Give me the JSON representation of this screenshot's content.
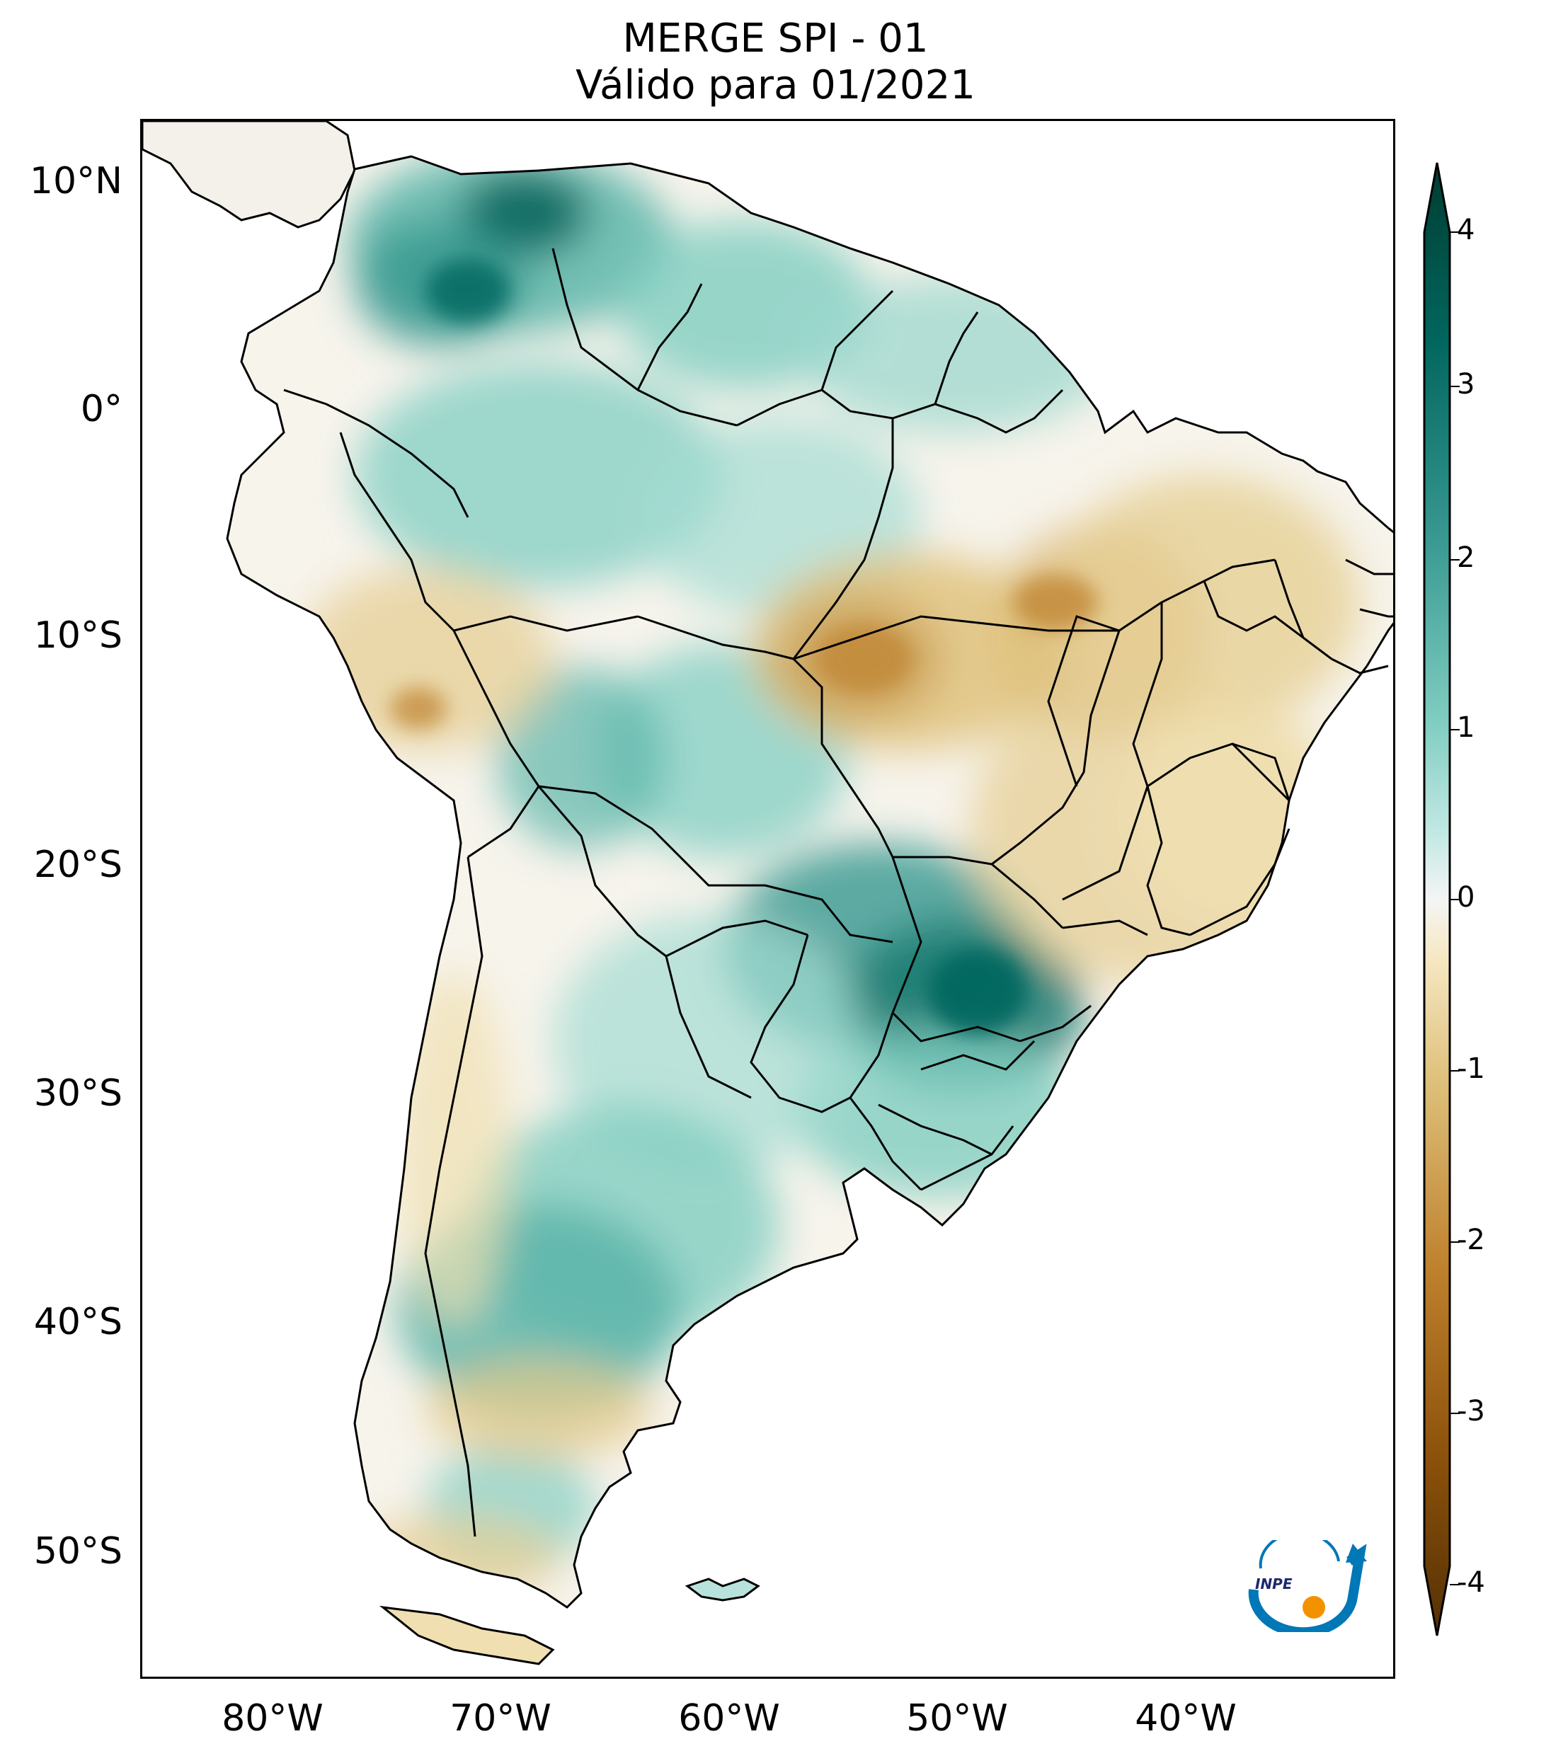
{
  "title": {
    "line1": "MERGE   SPI - 01",
    "line2": "Válido para 01/2021"
  },
  "axes": {
    "lat_labels": [
      "10°N",
      "0°",
      "10°S",
      "20°S",
      "30°S",
      "40°S",
      "50°S"
    ],
    "lon_labels": [
      "80°W",
      "70°W",
      "60°W",
      "50°W",
      "40°W"
    ]
  },
  "colorbar": {
    "ticks": [
      "4",
      "3",
      "2",
      "1",
      "0",
      "-1",
      "-2",
      "-3",
      "-4"
    ],
    "min": -4,
    "max": 4,
    "colors": {
      "dry_extreme": "#543005",
      "dry_strong": "#8c510a",
      "dry_moderate": "#bf812d",
      "dry_mild": "#dfc27d",
      "dry_weak": "#f6e8c3",
      "neutral": "#f5f5f5",
      "wet_weak": "#c7eae5",
      "wet_mild": "#80cdc1",
      "wet_moderate": "#35978f",
      "wet_strong": "#01665e",
      "wet_extreme": "#003c30"
    }
  },
  "logo": {
    "text": "INPE"
  }
}
